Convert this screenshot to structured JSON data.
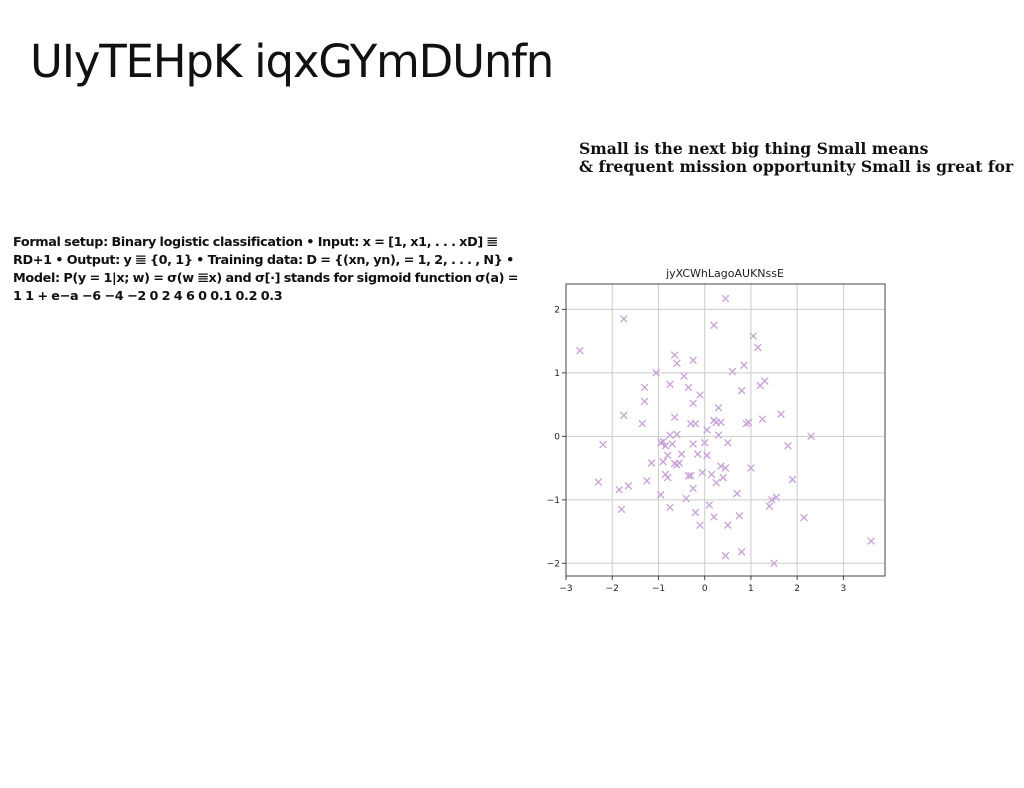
{
  "slide": {
    "title": "UIyTEHpK iqxGYmDUnfn",
    "tagline_line1": "Small is the next big thing Small means",
    "tagline_line2": "& frequent mission opportunity Small is great for",
    "formal_setup": "Formal setup: Binary logistic classification • Input: x = [1, x1, . . . xD] 𝌆 RD+1 • Output: y 𝌆 {0, 1} • Training data: D = {(xn, yn), = 1, 2, . . . , N} • Model: P(y = 1|x; w) = σ(w 𝌆x) and σ[·] stands for sigmoid function σ(a) = 1 1 + e−a −6 −4 −2 0 2 4 6 0 0.1 0.2 0.3"
  },
  "chart_data": {
    "type": "scatter",
    "title": "jyXCWhLagoAUKNssE",
    "xlabel": "",
    "ylabel": "",
    "xlim": [
      -3.0,
      3.9
    ],
    "ylim": [
      -2.2,
      2.4
    ],
    "xticks": [
      -3,
      -2,
      -1,
      0,
      1,
      2,
      3
    ],
    "yticks": [
      -2,
      -1,
      0,
      1,
      2
    ],
    "xtick_labels": [
      "−3",
      "−2",
      "−1",
      "0",
      "1",
      "2",
      "3"
    ],
    "ytick_labels": [
      "−2",
      "−1",
      "0",
      "1",
      "2"
    ],
    "grid": true,
    "marker": "x",
    "color": "#c9a0d8",
    "series": [
      {
        "points": [
          [
            -2.7,
            1.35
          ],
          [
            -2.3,
            -0.72
          ],
          [
            -2.2,
            -0.13
          ],
          [
            -1.85,
            -0.84
          ],
          [
            -1.8,
            -1.15
          ],
          [
            -1.75,
            1.85
          ],
          [
            -1.75,
            0.33
          ],
          [
            -1.65,
            -0.78
          ],
          [
            -1.35,
            0.2
          ],
          [
            -1.3,
            0.77
          ],
          [
            -1.3,
            0.55
          ],
          [
            -1.25,
            -0.7
          ],
          [
            -1.15,
            -0.42
          ],
          [
            -1.05,
            1.0
          ],
          [
            -0.95,
            -0.1
          ],
          [
            -0.95,
            -0.92
          ],
          [
            -0.9,
            -0.08
          ],
          [
            -0.9,
            -0.4
          ],
          [
            -0.85,
            -0.15
          ],
          [
            -0.85,
            -0.6
          ],
          [
            -0.8,
            -0.3
          ],
          [
            -0.8,
            -0.65
          ],
          [
            -0.75,
            0.82
          ],
          [
            -0.75,
            0.02
          ],
          [
            -0.75,
            -1.12
          ],
          [
            -0.7,
            -0.12
          ],
          [
            -0.65,
            1.28
          ],
          [
            -0.65,
            0.3
          ],
          [
            -0.65,
            -0.43
          ],
          [
            -0.6,
            0.03
          ],
          [
            -0.6,
            1.15
          ],
          [
            -0.6,
            -0.45
          ],
          [
            -0.55,
            -0.42
          ],
          [
            -0.5,
            -0.28
          ],
          [
            -0.45,
            0.95
          ],
          [
            -0.4,
            -0.98
          ],
          [
            -0.35,
            0.77
          ],
          [
            -0.35,
            -0.62
          ],
          [
            -0.3,
            0.2
          ],
          [
            -0.3,
            -0.62
          ],
          [
            -0.25,
            1.2
          ],
          [
            -0.25,
            0.52
          ],
          [
            -0.25,
            -0.12
          ],
          [
            -0.25,
            -0.82
          ],
          [
            -0.2,
            0.2
          ],
          [
            -0.2,
            -1.2
          ],
          [
            -0.15,
            -0.28
          ],
          [
            -0.1,
            0.65
          ],
          [
            -0.1,
            -1.4
          ],
          [
            -0.05,
            -0.57
          ],
          [
            0.0,
            -0.1
          ],
          [
            0.05,
            0.1
          ],
          [
            0.05,
            -0.3
          ],
          [
            0.1,
            -1.08
          ],
          [
            0.15,
            -0.6
          ],
          [
            0.2,
            -1.27
          ],
          [
            0.2,
            1.75
          ],
          [
            0.2,
            0.25
          ],
          [
            0.25,
            0.22
          ],
          [
            0.25,
            -0.73
          ],
          [
            0.3,
            0.45
          ],
          [
            0.3,
            0.02
          ],
          [
            0.35,
            0.22
          ],
          [
            0.35,
            -0.47
          ],
          [
            0.4,
            -0.65
          ],
          [
            0.45,
            2.17
          ],
          [
            0.45,
            -1.88
          ],
          [
            0.45,
            -0.5
          ],
          [
            0.5,
            -0.1
          ],
          [
            0.5,
            -1.4
          ],
          [
            0.6,
            1.02
          ],
          [
            0.7,
            -0.9
          ],
          [
            0.75,
            -1.25
          ],
          [
            0.8,
            0.72
          ],
          [
            0.8,
            -1.82
          ],
          [
            0.85,
            1.12
          ],
          [
            0.9,
            0.2
          ],
          [
            0.95,
            0.22
          ],
          [
            1.0,
            -0.5
          ],
          [
            1.05,
            1.58
          ],
          [
            1.15,
            1.4
          ],
          [
            1.2,
            0.8
          ],
          [
            1.25,
            0.27
          ],
          [
            1.3,
            0.87
          ],
          [
            1.4,
            -1.1
          ],
          [
            1.45,
            -1.0
          ],
          [
            1.5,
            -2.0
          ],
          [
            1.55,
            -0.96
          ],
          [
            1.65,
            0.35
          ],
          [
            1.8,
            -0.15
          ],
          [
            1.9,
            -0.68
          ],
          [
            2.15,
            -1.28
          ],
          [
            2.3,
            0.0
          ],
          [
            3.6,
            -1.65
          ]
        ]
      }
    ]
  }
}
